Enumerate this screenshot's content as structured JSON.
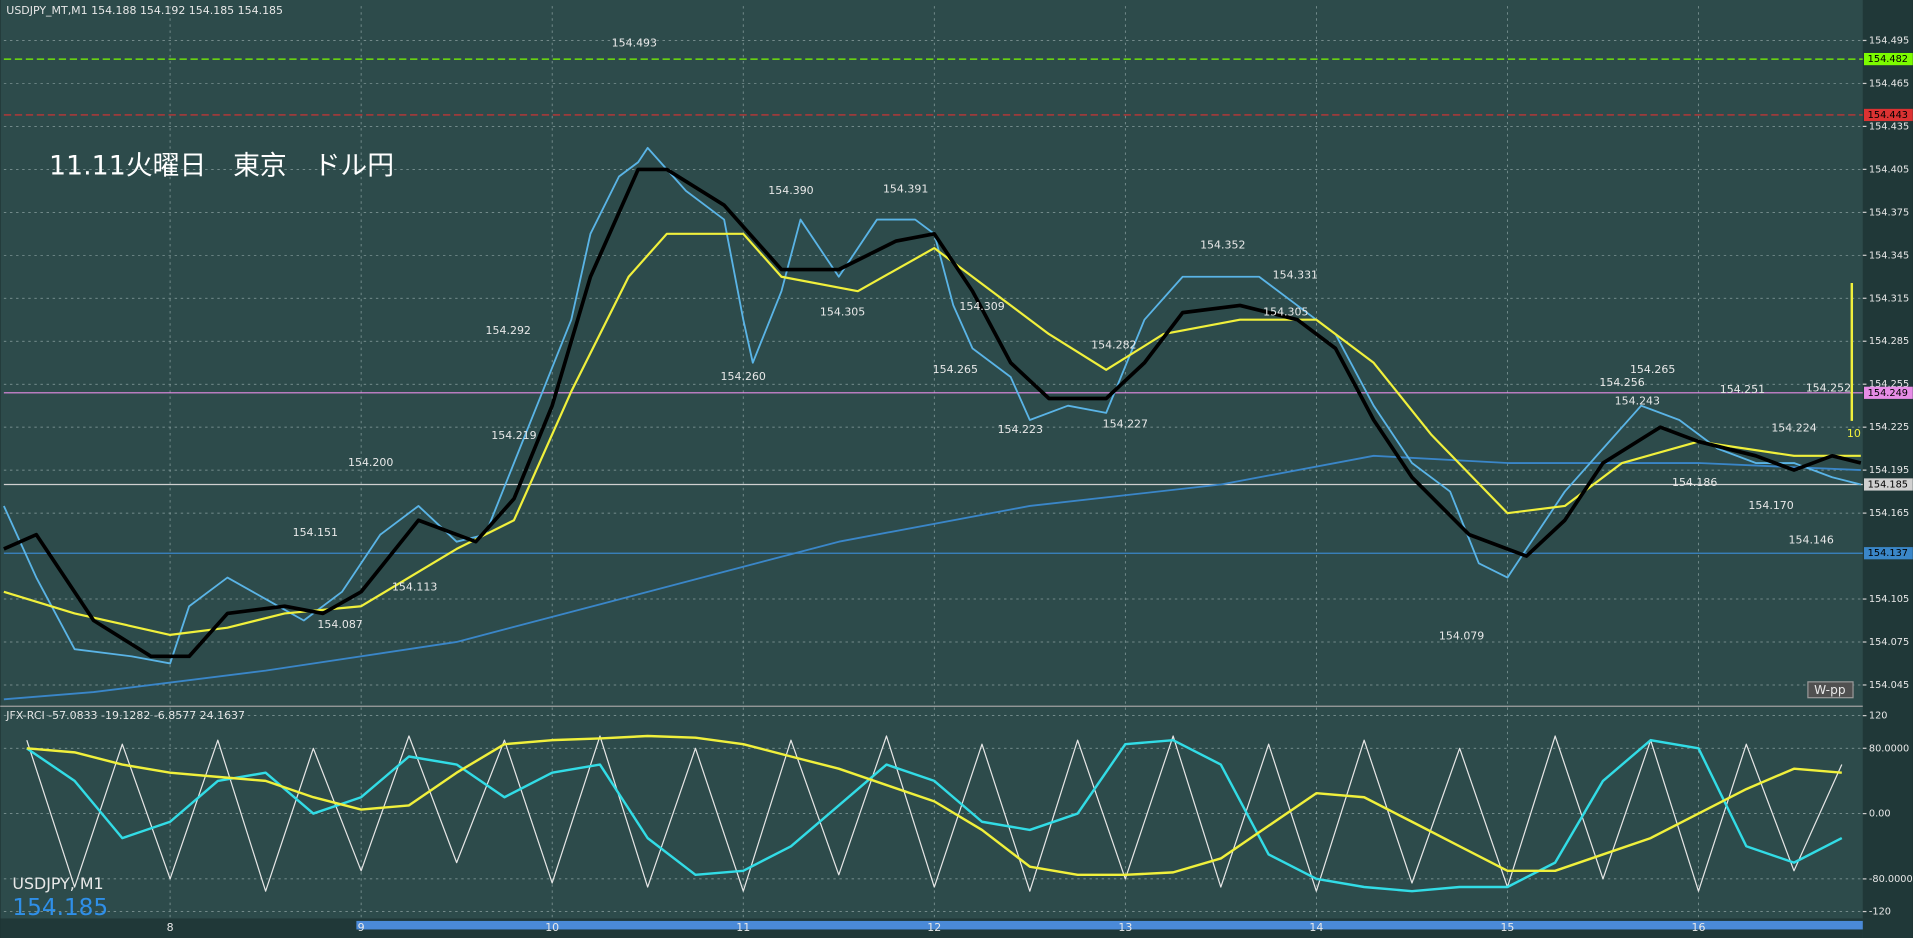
{
  "chart_data": [
    {
      "type": "line",
      "title": "USDJPY_MT,M1  154.188 154.192 154.185 154.185",
      "xlim": [
        7.13,
        16.86
      ],
      "xticks": [
        8,
        9,
        10,
        11,
        12,
        13,
        14,
        15,
        16
      ],
      "ylim": [
        154.031,
        154.519
      ],
      "yticks": [
        154.045,
        154.075,
        154.105,
        154.165,
        154.195,
        154.225,
        154.255,
        154.285,
        154.315,
        154.345,
        154.375,
        154.405,
        154.435,
        154.465,
        154.495
      ],
      "grid": true,
      "series": [
        {
          "color": "#3a86c8",
          "width": 1.5,
          "x": [
            7.13,
            7.6,
            8.5,
            9.5,
            10.5,
            11.5,
            12.5,
            13.5,
            14.3,
            15.0,
            16.0,
            16.85
          ],
          "values": [
            154.035,
            154.04,
            154.055,
            154.075,
            154.11,
            154.145,
            154.17,
            154.185,
            154.205,
            154.2,
            154.2,
            154.195
          ]
        },
        {
          "color": "#5ab4e6",
          "width": 1.5,
          "x": [
            7.13,
            7.3,
            7.5,
            7.8,
            8.0,
            8.1,
            8.3,
            8.5,
            8.7,
            8.9,
            9.1,
            9.3,
            9.5,
            9.65,
            9.8,
            9.95,
            10.1,
            10.2,
            10.35,
            10.45,
            10.5,
            10.7,
            10.9,
            11.0,
            11.05,
            11.2,
            11.3,
            11.5,
            11.7,
            11.9,
            12.0,
            12.1,
            12.2,
            12.4,
            12.5,
            12.7,
            12.9,
            13.1,
            13.3,
            13.5,
            13.7,
            13.9,
            14.1,
            14.3,
            14.5,
            14.7,
            14.85,
            15.0,
            15.1,
            15.3,
            15.5,
            15.7,
            15.9,
            16.1,
            16.3,
            16.5,
            16.7,
            16.85
          ],
          "values": [
            154.17,
            154.12,
            154.07,
            154.065,
            154.06,
            154.1,
            154.12,
            154.105,
            154.09,
            154.11,
            154.15,
            154.17,
            154.145,
            154.15,
            154.2,
            154.25,
            154.3,
            154.36,
            154.4,
            154.41,
            154.42,
            154.39,
            154.37,
            154.3,
            154.27,
            154.32,
            154.37,
            154.33,
            154.37,
            154.37,
            154.36,
            154.31,
            154.28,
            154.26,
            154.23,
            154.24,
            154.235,
            154.3,
            154.33,
            154.33,
            154.33,
            154.31,
            154.29,
            154.24,
            154.2,
            154.18,
            154.13,
            154.12,
            154.14,
            154.18,
            154.21,
            154.24,
            154.23,
            154.21,
            154.2,
            154.2,
            154.19,
            154.185
          ]
        },
        {
          "color": "#f0f03c",
          "width": 1.8,
          "x": [
            7.13,
            7.5,
            8.0,
            8.3,
            8.6,
            9.0,
            9.5,
            9.8,
            10.1,
            10.4,
            10.6,
            11.0,
            11.2,
            11.6,
            12.0,
            12.3,
            12.6,
            12.9,
            13.2,
            13.6,
            14.0,
            14.3,
            14.6,
            15.0,
            15.3,
            15.6,
            16.0,
            16.5,
            16.85
          ],
          "values": [
            154.11,
            154.095,
            154.08,
            154.085,
            154.095,
            154.1,
            154.14,
            154.16,
            154.25,
            154.33,
            154.36,
            154.36,
            154.33,
            154.32,
            154.35,
            154.32,
            154.29,
            154.265,
            154.29,
            154.3,
            154.3,
            154.27,
            154.22,
            154.165,
            154.17,
            154.2,
            154.215,
            154.205,
            154.205
          ]
        },
        {
          "color": "#000000",
          "width": 3,
          "x": [
            7.13,
            7.3,
            7.6,
            7.9,
            8.1,
            8.3,
            8.6,
            8.8,
            9.0,
            9.3,
            9.6,
            9.8,
            10.0,
            10.2,
            10.45,
            10.6,
            10.9,
            11.1,
            11.2,
            11.5,
            11.8,
            12.0,
            12.2,
            12.4,
            12.6,
            12.9,
            13.1,
            13.3,
            13.6,
            13.9,
            14.1,
            14.3,
            14.5,
            14.8,
            15.1,
            15.3,
            15.5,
            15.8,
            16.0,
            16.3,
            16.5,
            16.7,
            16.85
          ],
          "values": [
            154.14,
            154.15,
            154.09,
            154.065,
            154.065,
            154.095,
            154.1,
            154.095,
            154.11,
            154.16,
            154.145,
            154.175,
            154.24,
            154.33,
            154.405,
            154.405,
            154.38,
            154.35,
            154.335,
            154.335,
            154.355,
            154.36,
            154.32,
            154.27,
            154.245,
            154.245,
            154.27,
            154.305,
            154.31,
            154.3,
            154.28,
            154.23,
            154.19,
            154.15,
            154.135,
            154.16,
            154.2,
            154.225,
            154.215,
            154.205,
            154.195,
            154.205,
            154.2
          ]
        }
      ],
      "levels": [
        {
          "value": 154.482,
          "color": "#7cfc00"
        },
        {
          "value": 154.443,
          "color": "#dc3232"
        },
        {
          "value": 154.249,
          "color": "#e68ce6"
        },
        {
          "value": 154.185,
          "color": "#d0d0d0"
        },
        {
          "value": 154.137,
          "color": "#3a86c8"
        }
      ],
      "annotations": {
        "x": [
          10.43,
          11.25,
          11.85,
          13.51,
          13.89,
          9.77,
          11.52,
          12.25,
          12.94,
          13.84,
          12.11,
          11.0,
          9.8,
          12.45,
          13.0,
          9.05,
          8.76,
          9.28,
          8.89,
          14.76,
          15.6,
          15.76,
          15.68,
          16.23,
          16.5,
          16.68,
          15.98,
          16.38,
          16.59
        ],
        "values": [
          154.493,
          154.39,
          154.391,
          154.352,
          154.331,
          154.292,
          154.305,
          154.309,
          154.282,
          154.305,
          154.265,
          154.26,
          154.219,
          154.223,
          154.227,
          154.2,
          154.151,
          154.113,
          154.087,
          154.079,
          154.256,
          154.265,
          154.243,
          154.251,
          154.224,
          154.252,
          154.186,
          154.17,
          154.146
        ],
        "value_labels": [
          "154.493",
          "154.390",
          "154.391",
          "154.352",
          "154.331",
          "154.292",
          "154.305",
          "154.309",
          "154.282",
          "154.305",
          "154.265",
          "154.260",
          "154.219",
          "154.223",
          "154.227",
          "154.200",
          "154.151",
          "154.113",
          "154.087",
          "154.079",
          "154.256",
          "154.265",
          "154.243",
          "154.251",
          "154.224",
          "154.252",
          "154.186",
          "154.170",
          "154.146"
        ]
      }
    },
    {
      "type": "line",
      "title": "JFX-RCI -57.0833 -19.1282 -6.8577 24.1637",
      "ylim": [
        -127,
        130
      ],
      "yticks": [
        120,
        {
          "value": 80,
          "label": "80.0000"
        },
        {
          "value": 0,
          "label": "0.00"
        },
        {
          "value": -80,
          "label": "-80.0000"
        },
        -120
      ],
      "x": [
        7.25,
        7.5,
        7.75,
        8,
        8.25,
        8.5,
        8.75,
        9,
        9.25,
        9.5,
        9.75,
        10,
        10.25,
        10.5,
        10.75,
        11,
        11.25,
        11.5,
        11.75,
        12,
        12.25,
        12.5,
        12.75,
        13,
        13.25,
        13.5,
        13.75,
        14,
        14.25,
        14.5,
        14.75,
        15,
        15.25,
        15.5,
        15.75,
        16,
        16.25,
        16.5,
        16.75
      ],
      "series": [
        {
          "color": "#e6e6e6",
          "width": 1,
          "values": [
            90,
            -90,
            85,
            -80,
            90,
            -95,
            80,
            -70,
            95,
            -60,
            90,
            -85,
            95,
            -90,
            80,
            -95,
            90,
            -75,
            95,
            -90,
            85,
            -95,
            90,
            -80,
            95,
            -90,
            85,
            -95,
            90,
            -85,
            80,
            -90,
            95,
            -80,
            90,
            -95,
            85,
            -70,
            60
          ]
        },
        {
          "color": "#32dce6",
          "width": 2,
          "values": [
            80,
            40,
            -30,
            -10,
            40,
            50,
            0,
            20,
            70,
            60,
            20,
            50,
            60,
            -30,
            -75,
            -70,
            -40,
            10,
            60,
            40,
            -10,
            -20,
            0,
            85,
            90,
            60,
            -50,
            -80,
            -90,
            -95,
            -90,
            -90,
            -60,
            40,
            90,
            80,
            -40,
            -60,
            -30
          ]
        },
        {
          "color": "#f0f03c",
          "width": 2,
          "values": [
            80,
            75,
            60,
            50,
            45,
            40,
            20,
            5,
            10,
            50,
            85,
            90,
            92,
            95,
            93,
            85,
            70,
            55,
            35,
            15,
            -20,
            -65,
            -75,
            -75,
            -72,
            -55,
            -15,
            25,
            20,
            -10,
            -40,
            -70,
            -70,
            -50,
            -30,
            0,
            30,
            55,
            50
          ]
        }
      ]
    }
  ],
  "overlay": {
    "title": "11.11火曜日　東京　ドル円",
    "symbol": "USDJPY, M1",
    "price": "154.185",
    "badge": "W-pp",
    "marker": "10"
  }
}
